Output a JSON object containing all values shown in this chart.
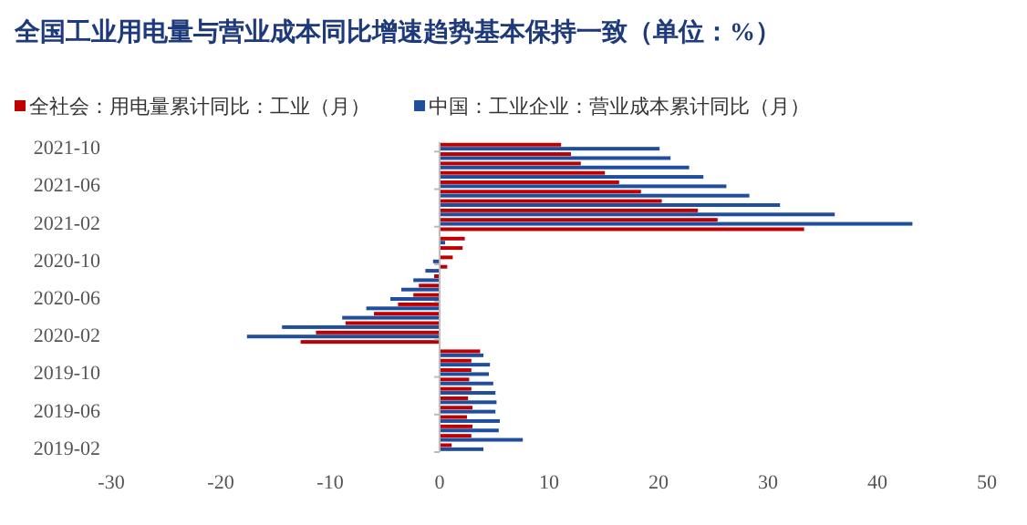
{
  "chart_data": {
    "type": "bar",
    "orientation": "horizontal",
    "title": "全国工业用电量与营业成本同比增速趋势基本保持一致（单位：%）",
    "categories": [
      "2021-10",
      null,
      null,
      null,
      "2021-06",
      null,
      null,
      null,
      "2021-02",
      null,
      null,
      null,
      "2020-10",
      null,
      null,
      null,
      "2020-06",
      null,
      null,
      null,
      "2020-02",
      null,
      null,
      null,
      "2019-10",
      null,
      null,
      null,
      "2019-06",
      null,
      null,
      null,
      "2019-02"
    ],
    "series": [
      {
        "name": "全社会：用电量累计同比：工业（月）",
        "color": "#c00000",
        "values": [
          11.1,
          12.0,
          12.9,
          15.1,
          16.4,
          18.4,
          20.3,
          23.6,
          25.4,
          33.3,
          2.3,
          2.1,
          1.2,
          0.7,
          -0.5,
          -1.9,
          -2.4,
          -3.8,
          -6.0,
          -8.6,
          -11.3,
          -12.7,
          3.7,
          2.9,
          2.9,
          2.7,
          2.9,
          2.6,
          3.0,
          2.5,
          3.0,
          2.9,
          1.1
        ]
      },
      {
        "name": "中国：工业企业：营业成本累计同比（月）",
        "color": "#1f4e9c",
        "values": [
          20.1,
          21.1,
          22.8,
          24.1,
          26.2,
          28.3,
          31.1,
          36.1,
          43.2,
          null,
          0.5,
          null,
          -0.6,
          -1.3,
          -2.4,
          -3.5,
          -4.5,
          -6.7,
          -8.9,
          -14.4,
          -17.6,
          null,
          4.0,
          4.6,
          4.5,
          4.9,
          5.1,
          5.2,
          5.1,
          5.5,
          5.4,
          7.6,
          4.0
        ]
      }
    ],
    "xlim": [
      -30,
      50
    ],
    "xticks": [
      -30,
      -20,
      -10,
      0,
      10,
      20,
      30,
      40,
      50
    ],
    "legend": "top left"
  }
}
